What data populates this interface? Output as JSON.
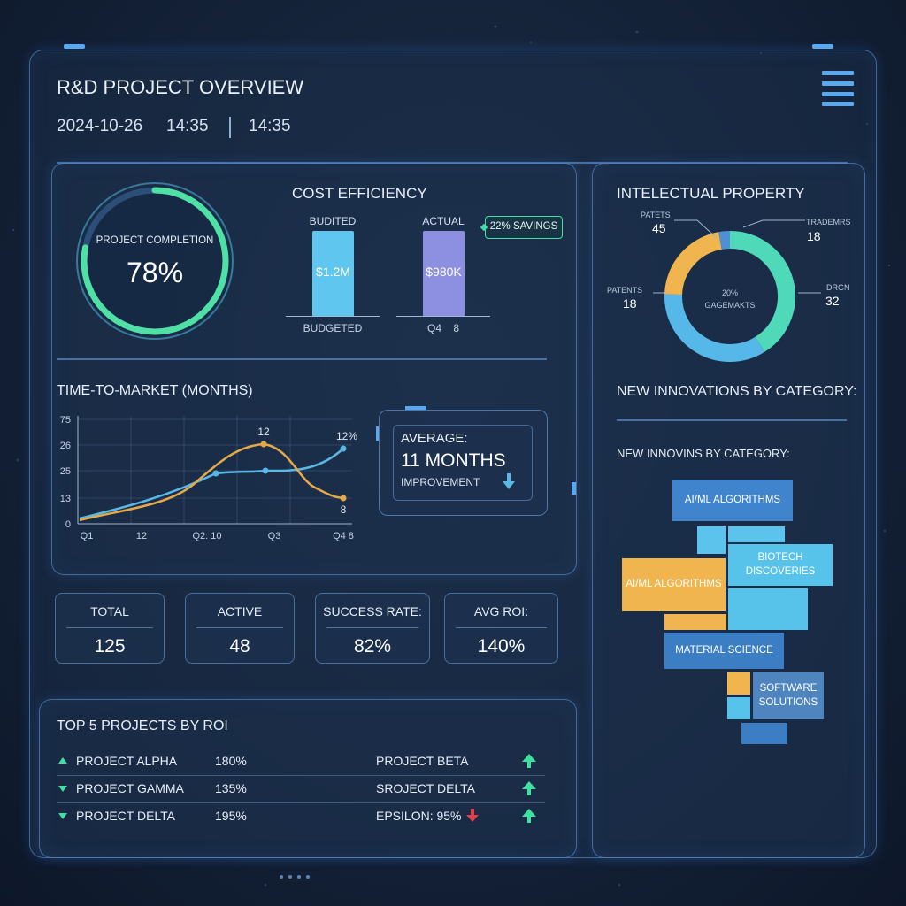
{
  "header": {
    "title": "R&D PROJECT OVERVIEW",
    "date": "2024-10-26",
    "time1": "14:35",
    "time2": "14:35"
  },
  "completion": {
    "label": "PROJECT COMPLETION",
    "value": "78%",
    "fraction": 0.78
  },
  "cost": {
    "title": "COST EFFICIENCY",
    "budgeted_label": "BUDITED",
    "actual_label": "ACTUAL",
    "budgeted_value": "$1.2M",
    "actual_value": "$980K",
    "budget_axis_label": "BUDGETED",
    "actual_axis_label": "Q4    8",
    "savings": "22% SAVINGS",
    "colors": {
      "budget": "#5fc6ef",
      "actual": "#8d8fe0"
    }
  },
  "ttm": {
    "title": "TIME-TO-MARKET (MONTHS)",
    "yticks": [
      "75",
      "26",
      "25",
      "13",
      "0"
    ],
    "xticks": [
      "Q1",
      "12",
      "Q2: 10",
      "Q3",
      "Q4 8"
    ],
    "annotations": {
      "peak": "12",
      "end_blue": "12%",
      "end_orange": "8"
    },
    "average_label": "AVERAGE:",
    "average_value": "11 MONTHS",
    "improvement": "IMPROVEMENT",
    "colors": {
      "blue": "#5ab8e6",
      "orange": "#e6a94a"
    }
  },
  "kpis": [
    {
      "label": "TOTAL",
      "value": "125"
    },
    {
      "label": "ACTIVE",
      "value": "48"
    },
    {
      "label": "SUCCESS RATE:",
      "value": "82%"
    },
    {
      "label": "AVG ROI:",
      "value": "140%"
    }
  ],
  "top5": {
    "title": "TOP 5 PROJECTS BY ROI",
    "left": [
      {
        "name": "PROJECT ALPHA",
        "value": "180%",
        "trend": "up"
      },
      {
        "name": "PROJECT GAMMA",
        "value": "135%",
        "trend": "down"
      },
      {
        "name": "PROJECT DELTA",
        "value": "195%",
        "trend": "down"
      }
    ],
    "right": [
      {
        "name": "PROJECT BETA"
      },
      {
        "name": "SROJECT DELTA"
      },
      {
        "name": "EPSILON: 95%"
      }
    ]
  },
  "ip": {
    "title": "INTELECTUAL PROPERTY",
    "patents_top_label": "PATETS",
    "patents_top_value": "45",
    "trademarks_label": "TRADEMRS",
    "trademarks_value": "18",
    "patents_left_label": "PATENTS",
    "patents_left_value": "18",
    "other_label": "DRGN",
    "other_value": "32",
    "center_line1": "20%",
    "center_line2": "GAGEMAKTS",
    "colors": {
      "teal": "#4fd9b9",
      "blue": "#55b8e8",
      "orange": "#f0b54f",
      "steel": "#4e8fd6"
    }
  },
  "innovations": {
    "title": "NEW INNOVATIONS BY CATEGORY:",
    "subtitle": "NEW INNOVINS BY CATEGORY:",
    "blocks": {
      "aiml_top": "AI/ML ALGORITHMS",
      "aiml_left": "AI/ML ALGORITHMS",
      "biotech": "BIOTECH DISCOVERIES",
      "material": "MATERIAL SCIENCE",
      "software": "SOFTWARE SOLUTIONS"
    }
  }
}
